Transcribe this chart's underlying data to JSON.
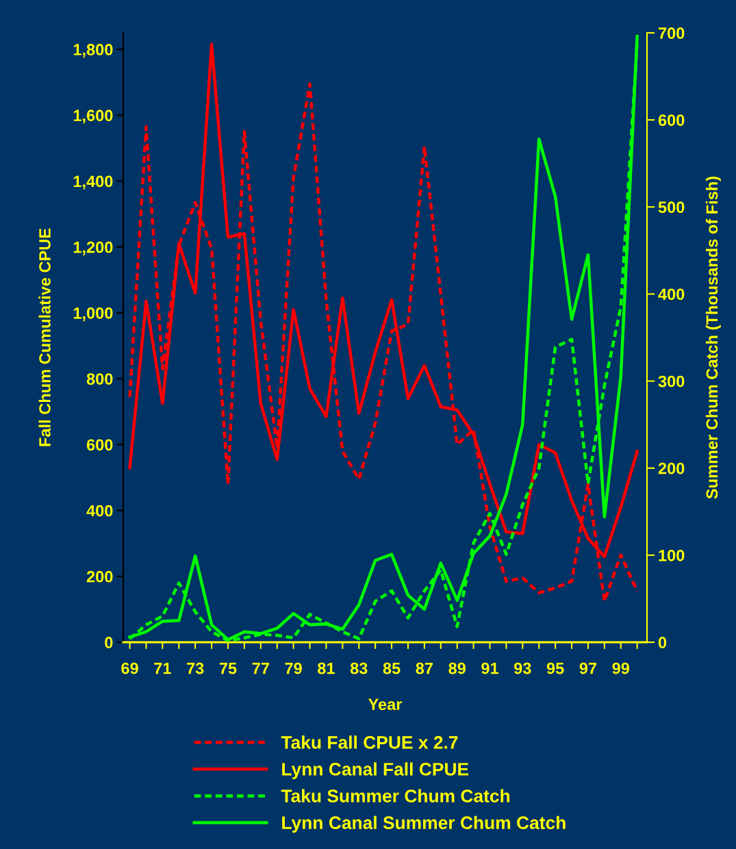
{
  "chart_data": {
    "type": "line",
    "xlabel": "Year",
    "ylabel": "Fall Chum Cumulative CPUE",
    "y2label": "Summer Chum Catch (Thousands of Fish)",
    "x": [
      69,
      70,
      71,
      72,
      73,
      74,
      75,
      76,
      77,
      78,
      79,
      80,
      81,
      82,
      83,
      84,
      85,
      86,
      87,
      88,
      89,
      90,
      91,
      92,
      93,
      94,
      95,
      96,
      97,
      98,
      99,
      100
    ],
    "series": [
      {
        "name": "Taku Fall CPUE x 2.7",
        "color": "#ff0000",
        "line_style": "dashed",
        "values": [
          745,
          1565,
          830,
          1205,
          1335,
          1195,
          480,
          1550,
          975,
          590,
          1410,
          1695,
          1040,
          580,
          495,
          665,
          945,
          965,
          1505,
          1055,
          600,
          645,
          350,
          185,
          195,
          150,
          165,
          185,
          480,
          125,
          265,
          155
        ]
      },
      {
        "name": "Lynn Canal Fall CPUE",
        "color": "#ff0000",
        "line_style": "solid",
        "values": [
          530,
          1035,
          725,
          1210,
          1060,
          1815,
          1230,
          1240,
          725,
          555,
          1010,
          770,
          685,
          1045,
          695,
          880,
          1040,
          740,
          840,
          715,
          705,
          630,
          480,
          335,
          330,
          600,
          575,
          430,
          315,
          260,
          410,
          580
        ]
      },
      {
        "name": "Taku Summer Chum Catch",
        "color": "#00ff00",
        "line_style": "dashed",
        "axis": "y2",
        "values": [
          4,
          20,
          30,
          68,
          35,
          12,
          2,
          5,
          9,
          8,
          5,
          32,
          22,
          12,
          4,
          47,
          59,
          28,
          59,
          83,
          18,
          114,
          148,
          101,
          158,
          200,
          339,
          348,
          182,
          295,
          385,
          690
        ]
      },
      {
        "name": "Lynn Canal Summer Chum Catch",
        "color": "#00ff00",
        "line_style": "solid",
        "axis": "y2",
        "values": [
          6,
          12,
          24,
          25,
          99,
          20,
          3,
          12,
          10,
          16,
          33,
          20,
          21,
          15,
          43,
          94,
          101,
          54,
          38,
          91,
          48,
          102,
          122,
          170,
          250,
          578,
          512,
          371,
          445,
          144,
          305,
          696
        ]
      }
    ],
    "xlim": [
      68.6,
      100.6
    ],
    "xticks": [
      69,
      {
        "value": 70,
        "label": null
      },
      71,
      {
        "value": 72,
        "label": null
      },
      73,
      {
        "value": 74,
        "label": null
      },
      75,
      {
        "value": 76,
        "label": null
      },
      77,
      {
        "value": 78,
        "label": null
      },
      79,
      {
        "value": 80,
        "label": null
      },
      81,
      {
        "value": 82,
        "label": null
      },
      83,
      {
        "value": 84,
        "label": null
      },
      85,
      {
        "value": 86,
        "label": null
      },
      87,
      {
        "value": 88,
        "label": null
      },
      89,
      {
        "value": 90,
        "label": null
      },
      91,
      {
        "value": 92,
        "label": null
      },
      93,
      {
        "value": 94,
        "label": null
      },
      95,
      {
        "value": 96,
        "label": null
      },
      97,
      {
        "value": 98,
        "label": null
      },
      99,
      {
        "value": 100,
        "label": null
      }
    ],
    "ylim": [
      0,
      1850
    ],
    "yticks": [
      {
        "value": 0,
        "label": "0"
      },
      {
        "value": 200,
        "label": "200"
      },
      {
        "value": 400,
        "label": "400"
      },
      {
        "value": 600,
        "label": "600"
      },
      {
        "value": 800,
        "label": "800"
      },
      {
        "value": 1000,
        "label": "1,000"
      },
      {
        "value": 1200,
        "label": "1,200"
      },
      {
        "value": 1400,
        "label": "1,400"
      },
      {
        "value": 1600,
        "label": "1,600"
      },
      {
        "value": 1800,
        "label": "1,800"
      }
    ],
    "y2lim": [
      0,
      700
    ],
    "y2ticks": [
      0,
      100,
      200,
      300,
      400,
      500,
      600,
      700
    ],
    "grid": false,
    "legend": "bottom"
  }
}
